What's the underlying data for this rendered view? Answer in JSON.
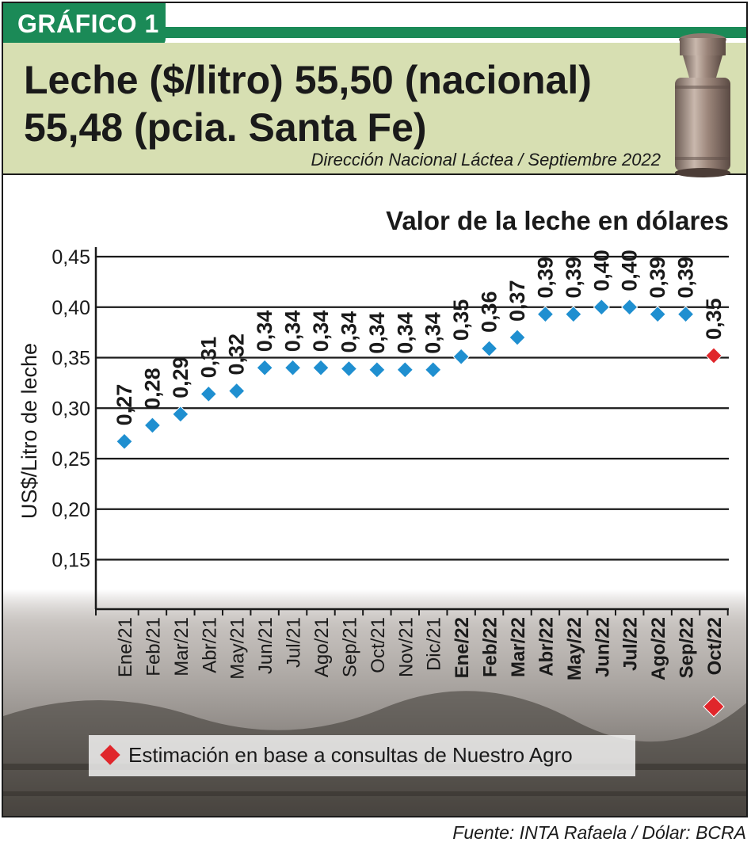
{
  "badge": "GRÁFICO 1",
  "header": {
    "title_line1": "Leche ($/litro) 55,50 (nacional)",
    "title_line2": "55,48 (pcia. Santa Fe)",
    "subtitle": "Dirección Nacional Láctea / Septiembre 2022"
  },
  "legend": {
    "text": "Estimación en base a consultas de Nuestro Agro"
  },
  "source": "Fuente: INTA Rafaela / Dólar: BCRA",
  "colors": {
    "accent_green": "#1b8a57",
    "header_bg": "#d7dfb2",
    "point_blue": "#1f8fd0",
    "estimate_red": "#e0262b"
  },
  "chart_data": {
    "type": "scatter",
    "title": "Valor de la leche en dólares",
    "ylabel": "US$/Litro de leche",
    "ylim": [
      0.1,
      0.45
    ],
    "yticks": [
      "0,15",
      "0,20",
      "0,25",
      "0,30",
      "0,35",
      "0,40",
      "0,45"
    ],
    "ytick_values": [
      0.15,
      0.2,
      0.25,
      0.3,
      0.35,
      0.4,
      0.45
    ],
    "grid": true,
    "categories": [
      "Ene/21",
      "Feb/21",
      "Mar/21",
      "Abr/21",
      "May/21",
      "Jun/21",
      "Jul/21",
      "Ago/21",
      "Sep/21",
      "Oct/21",
      "Nov/21",
      "Dic/21",
      "Ene/22",
      "Feb/22",
      "Mar/22",
      "Abr/22",
      "May/22",
      "Jun/22",
      "Jul/22",
      "Ago/22",
      "Sep/22",
      "Oct/22"
    ],
    "bold_categories": [
      false,
      false,
      false,
      false,
      false,
      false,
      false,
      false,
      false,
      false,
      false,
      false,
      true,
      true,
      true,
      true,
      true,
      true,
      true,
      true,
      true,
      true
    ],
    "values": [
      0.267,
      0.283,
      0.294,
      0.314,
      0.317,
      0.34,
      0.34,
      0.34,
      0.339,
      0.338,
      0.338,
      0.338,
      0.351,
      0.359,
      0.37,
      0.393,
      0.393,
      0.4,
      0.4,
      0.393,
      0.393,
      0.352
    ],
    "labels": [
      "0,27",
      "0,28",
      "0,29",
      "0,31",
      "0,32",
      "0,34",
      "0,34",
      "0,34",
      "0,34",
      "0,34",
      "0,34",
      "0,34",
      "0,35",
      "0,36",
      "0,37",
      "0,39",
      "0,39",
      "0,40",
      "0,40",
      "0,39",
      "0,39",
      "0,35"
    ],
    "estimated": [
      false,
      false,
      false,
      false,
      false,
      false,
      false,
      false,
      false,
      false,
      false,
      false,
      false,
      false,
      false,
      false,
      false,
      false,
      false,
      false,
      false,
      true
    ]
  }
}
